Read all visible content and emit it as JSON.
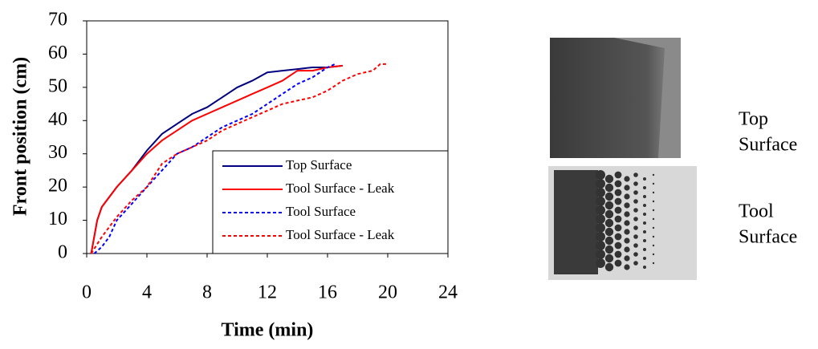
{
  "chart_data": {
    "type": "line",
    "xlabel": "Time (min)",
    "ylabel": "Front position (cm)",
    "xlim": [
      0,
      24
    ],
    "xticks": [
      0,
      4,
      8,
      12,
      16,
      20,
      24
    ],
    "ylim": [
      0,
      70
    ],
    "yticks": [
      0,
      10,
      20,
      30,
      40,
      50,
      60,
      70
    ],
    "legend": "lower right",
    "series": [
      {
        "name": "Top Surface",
        "color": "#000080",
        "linestyle": "solid",
        "x": [
          0.3,
          0.7,
          1,
          2,
          3,
          4,
          5,
          6,
          7,
          8,
          9,
          10,
          11,
          12,
          13,
          14,
          15,
          16,
          17
        ],
        "values": [
          0,
          10,
          14,
          20,
          25,
          31,
          36,
          39,
          42,
          44,
          47,
          50,
          52,
          54.5,
          55,
          55.5,
          56,
          56,
          56.5
        ]
      },
      {
        "name": "Tool Surface - Leak",
        "color": "#ff0000",
        "linestyle": "solid",
        "x": [
          0.3,
          0.7,
          1,
          2,
          3,
          4,
          5,
          6,
          7,
          8,
          9,
          10,
          11,
          12,
          13,
          14,
          15,
          16,
          17
        ],
        "values": [
          0,
          10,
          14,
          20,
          25,
          30,
          34,
          37,
          40,
          42,
          44,
          46,
          48,
          50,
          52,
          55,
          55,
          56,
          56.5
        ]
      },
      {
        "name": "Tool Surface",
        "color": "#0000ff",
        "linestyle": "dotted",
        "x": [
          0.5,
          1,
          1.5,
          2,
          3,
          4,
          5,
          6,
          7,
          8,
          9,
          10,
          11,
          12,
          13,
          14,
          15,
          16,
          16.5
        ],
        "values": [
          0,
          2,
          5,
          10,
          15,
          20,
          25,
          30,
          32,
          35,
          38,
          40,
          42,
          45,
          48,
          51,
          53,
          56,
          57
        ]
      },
      {
        "name": "Tool Surface - Leak",
        "color": "#ff0000",
        "linestyle": "dotted",
        "x": [
          0.3,
          1,
          2,
          3,
          4,
          5,
          6,
          7,
          8,
          9,
          10,
          11,
          12,
          13,
          14,
          15,
          16,
          17,
          18,
          19,
          19.5,
          20
        ],
        "values": [
          0,
          5,
          11,
          16,
          20,
          27,
          30,
          32,
          34,
          37,
          39,
          41,
          43,
          45,
          46,
          47,
          49,
          52,
          54,
          55,
          57,
          57
        ]
      }
    ]
  },
  "photos": [
    {
      "label_lines": [
        "Top",
        "Surface"
      ]
    },
    {
      "label_lines": [
        "Tool",
        "Surface"
      ]
    }
  ]
}
